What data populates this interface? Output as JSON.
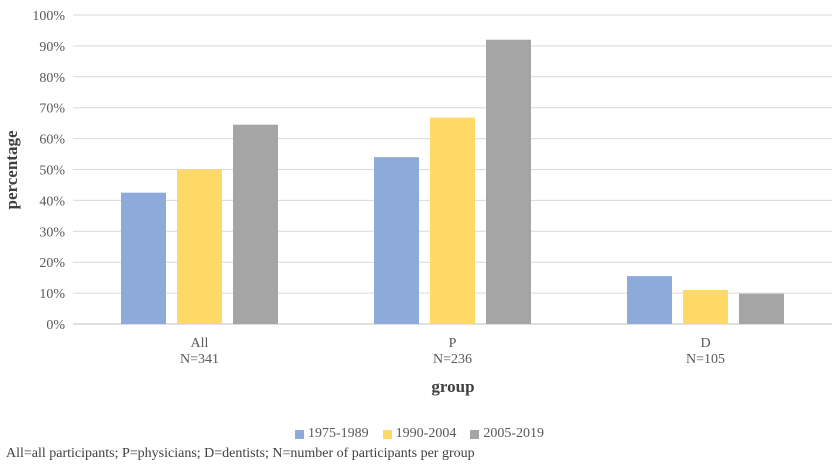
{
  "chart_data": {
    "type": "bar",
    "categories": [
      "All",
      "P",
      "D"
    ],
    "category_sublabels": [
      "N=341",
      "N=236",
      "N=105"
    ],
    "series": [
      {
        "name": "1975-1989",
        "color": "#8eaadb",
        "values": [
          42.5,
          54,
          15.5
        ]
      },
      {
        "name": "1990-2004",
        "color": "#ffd966",
        "values": [
          50,
          66.8,
          11
        ]
      },
      {
        "name": "2005-2019",
        "color": "#a5a5a5",
        "values": [
          64.5,
          92,
          9.8
        ]
      }
    ],
    "xlabel": "group",
    "ylabel": "percentage",
    "ylim": [
      0,
      100
    ],
    "yticks": [
      "0%",
      "10%",
      "20%",
      "30%",
      "40%",
      "50%",
      "60%",
      "70%",
      "80%",
      "90%",
      "100%"
    ],
    "grid": true,
    "legend_position": "bottom"
  },
  "footnote": "All=all participants; P=physicians; D=dentists; N=number of participants per group"
}
